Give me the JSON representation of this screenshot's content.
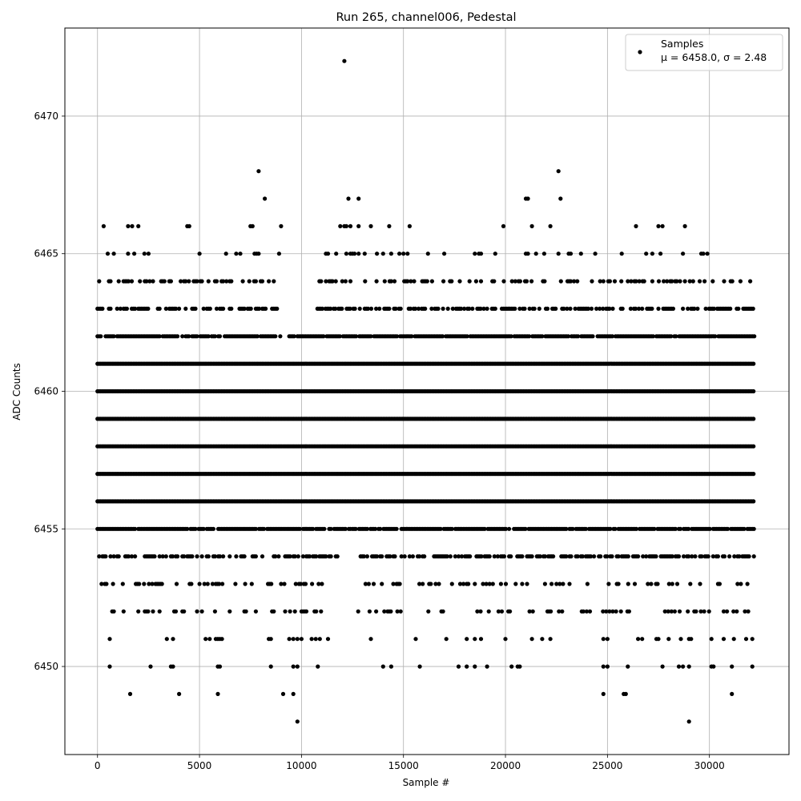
{
  "chart_data": {
    "type": "scatter",
    "title": "Run 265, channel006, Pedestal",
    "xlabel": "Sample #",
    "ylabel": "ADC Counts",
    "xlim": [
      -1600,
      33900
    ],
    "ylim": [
      6446.8,
      6473.2
    ],
    "xticks": [
      0,
      5000,
      10000,
      15000,
      20000,
      25000,
      30000
    ],
    "yticks": [
      6450,
      6455,
      6460,
      6465,
      6470
    ],
    "grid": true,
    "marker_color": "#000000",
    "legend": {
      "position": "top-right",
      "line1": "Samples",
      "line2_mu": "μ = 6458.0",
      "line2_sigma": "σ = 2.48"
    },
    "series": [
      {
        "name": "Samples",
        "dense_levels": [
          {
            "y": 6453,
            "x_ranges": [
              [
                200,
                11100
              ],
              [
                12900,
                32200
              ]
            ],
            "density": 0.25
          },
          {
            "y": 6454,
            "x_ranges": [
              [
                0,
                11800
              ],
              [
                12900,
                32200
              ]
            ],
            "density": 0.55
          },
          {
            "y": 6455,
            "x_ranges": [
              [
                0,
                12400
              ],
              [
                12500,
                32200
              ]
            ],
            "density": 0.9
          },
          {
            "y": 6456,
            "x_ranges": [
              [
                0,
                32200
              ]
            ],
            "density": 1.0
          },
          {
            "y": 6457,
            "x_ranges": [
              [
                0,
                32200
              ]
            ],
            "density": 1.0
          },
          {
            "y": 6458,
            "x_ranges": [
              [
                0,
                32200
              ]
            ],
            "density": 1.0
          },
          {
            "y": 6459,
            "x_ranges": [
              [
                0,
                32200
              ]
            ],
            "density": 1.0
          },
          {
            "y": 6460,
            "x_ranges": [
              [
                0,
                32200
              ]
            ],
            "density": 1.0
          },
          {
            "y": 6461,
            "x_ranges": [
              [
                0,
                32200
              ]
            ],
            "density": 1.0
          },
          {
            "y": 6462,
            "x_ranges": [
              [
                0,
                9000
              ],
              [
                9400,
                32200
              ]
            ],
            "density": 0.9
          },
          {
            "y": 6463,
            "x_ranges": [
              [
                0,
                9000
              ],
              [
                10700,
                32200
              ]
            ],
            "density": 0.6
          },
          {
            "y": 6464,
            "x_ranges": [
              [
                0,
                9300
              ],
              [
                10800,
                32000
              ]
            ],
            "density": 0.35
          },
          {
            "y": 6452,
            "x_ranges": [
              [
                400,
                11200
              ],
              [
                12700,
                32200
              ]
            ],
            "density": 0.18
          }
        ],
        "sparse_points": [
          [
            300,
            6466
          ],
          [
            1500,
            6466
          ],
          [
            1700,
            6466
          ],
          [
            2000,
            6466
          ],
          [
            4400,
            6466
          ],
          [
            4500,
            6466
          ],
          [
            7500,
            6466
          ],
          [
            7600,
            6466
          ],
          [
            9000,
            6466
          ],
          [
            11900,
            6466
          ],
          [
            12100,
            6466
          ],
          [
            12200,
            6466
          ],
          [
            12400,
            6466
          ],
          [
            12800,
            6466
          ],
          [
            13400,
            6466
          ],
          [
            14300,
            6466
          ],
          [
            15300,
            6466
          ],
          [
            19900,
            6466
          ],
          [
            21300,
            6466
          ],
          [
            22200,
            6466
          ],
          [
            26400,
            6466
          ],
          [
            27500,
            6466
          ],
          [
            27700,
            6466
          ],
          [
            28800,
            6466
          ],
          [
            7900,
            6468
          ],
          [
            22600,
            6468
          ],
          [
            12100,
            6472
          ],
          [
            8200,
            6467
          ],
          [
            12300,
            6467
          ],
          [
            12800,
            6467
          ],
          [
            21000,
            6467
          ],
          [
            21100,
            6467
          ],
          [
            22700,
            6467
          ],
          [
            500,
            6465
          ],
          [
            800,
            6465
          ],
          [
            1500,
            6465
          ],
          [
            1800,
            6465
          ],
          [
            2300,
            6465
          ],
          [
            2500,
            6465
          ],
          [
            5000,
            6465
          ],
          [
            6300,
            6465
          ],
          [
            6800,
            6465
          ],
          [
            7000,
            6465
          ],
          [
            7700,
            6465
          ],
          [
            7800,
            6465
          ],
          [
            7900,
            6465
          ],
          [
            8900,
            6465
          ],
          [
            11200,
            6465
          ],
          [
            11300,
            6465
          ],
          [
            11700,
            6465
          ],
          [
            12200,
            6465
          ],
          [
            12400,
            6465
          ],
          [
            12500,
            6465
          ],
          [
            12600,
            6465
          ],
          [
            12800,
            6465
          ],
          [
            13100,
            6465
          ],
          [
            13700,
            6465
          ],
          [
            14000,
            6465
          ],
          [
            14400,
            6465
          ],
          [
            14800,
            6465
          ],
          [
            15000,
            6465
          ],
          [
            15200,
            6465
          ],
          [
            16200,
            6465
          ],
          [
            17000,
            6465
          ],
          [
            18500,
            6465
          ],
          [
            18700,
            6465
          ],
          [
            18800,
            6465
          ],
          [
            19500,
            6465
          ],
          [
            21000,
            6465
          ],
          [
            21100,
            6465
          ],
          [
            21500,
            6465
          ],
          [
            21900,
            6465
          ],
          [
            22600,
            6465
          ],
          [
            23100,
            6465
          ],
          [
            23200,
            6465
          ],
          [
            23700,
            6465
          ],
          [
            24400,
            6465
          ],
          [
            25700,
            6465
          ],
          [
            26900,
            6465
          ],
          [
            27200,
            6465
          ],
          [
            27600,
            6465
          ],
          [
            28700,
            6465
          ],
          [
            29600,
            6465
          ],
          [
            29700,
            6465
          ],
          [
            29900,
            6465
          ],
          [
            600,
            6451
          ],
          [
            3400,
            6451
          ],
          [
            3700,
            6451
          ],
          [
            5300,
            6451
          ],
          [
            5500,
            6451
          ],
          [
            5800,
            6451
          ],
          [
            5900,
            6451
          ],
          [
            6000,
            6451
          ],
          [
            6100,
            6451
          ],
          [
            8400,
            6451
          ],
          [
            8500,
            6451
          ],
          [
            9400,
            6451
          ],
          [
            9600,
            6451
          ],
          [
            9800,
            6451
          ],
          [
            10000,
            6451
          ],
          [
            10500,
            6451
          ],
          [
            10700,
            6451
          ],
          [
            10900,
            6451
          ],
          [
            11300,
            6451
          ],
          [
            13400,
            6451
          ],
          [
            15600,
            6451
          ],
          [
            17100,
            6451
          ],
          [
            18100,
            6451
          ],
          [
            18500,
            6451
          ],
          [
            18800,
            6451
          ],
          [
            20000,
            6451
          ],
          [
            21300,
            6451
          ],
          [
            21800,
            6451
          ],
          [
            22200,
            6451
          ],
          [
            24800,
            6451
          ],
          [
            25000,
            6451
          ],
          [
            26500,
            6451
          ],
          [
            26700,
            6451
          ],
          [
            27400,
            6451
          ],
          [
            27500,
            6451
          ],
          [
            28000,
            6451
          ],
          [
            28600,
            6451
          ],
          [
            29000,
            6451
          ],
          [
            29100,
            6451
          ],
          [
            30100,
            6451
          ],
          [
            30700,
            6451
          ],
          [
            31200,
            6451
          ],
          [
            31800,
            6451
          ],
          [
            32100,
            6451
          ],
          [
            600,
            6450
          ],
          [
            2600,
            6450
          ],
          [
            3600,
            6450
          ],
          [
            3700,
            6450
          ],
          [
            5900,
            6450
          ],
          [
            6000,
            6450
          ],
          [
            8500,
            6450
          ],
          [
            9600,
            6450
          ],
          [
            9800,
            6450
          ],
          [
            10800,
            6450
          ],
          [
            14000,
            6450
          ],
          [
            14400,
            6450
          ],
          [
            15800,
            6450
          ],
          [
            17700,
            6450
          ],
          [
            18100,
            6450
          ],
          [
            18500,
            6450
          ],
          [
            19100,
            6450
          ],
          [
            20300,
            6450
          ],
          [
            20600,
            6450
          ],
          [
            20700,
            6450
          ],
          [
            24800,
            6450
          ],
          [
            25000,
            6450
          ],
          [
            26000,
            6450
          ],
          [
            27700,
            6450
          ],
          [
            28500,
            6450
          ],
          [
            28700,
            6450
          ],
          [
            29000,
            6450
          ],
          [
            30100,
            6450
          ],
          [
            30200,
            6450
          ],
          [
            31100,
            6450
          ],
          [
            32100,
            6450
          ],
          [
            1600,
            6449
          ],
          [
            4000,
            6449
          ],
          [
            5900,
            6449
          ],
          [
            9100,
            6449
          ],
          [
            9600,
            6449
          ],
          [
            24800,
            6449
          ],
          [
            25800,
            6449
          ],
          [
            25900,
            6449
          ],
          [
            31100,
            6449
          ],
          [
            9800,
            6448
          ],
          [
            29000,
            6448
          ]
        ]
      }
    ]
  }
}
